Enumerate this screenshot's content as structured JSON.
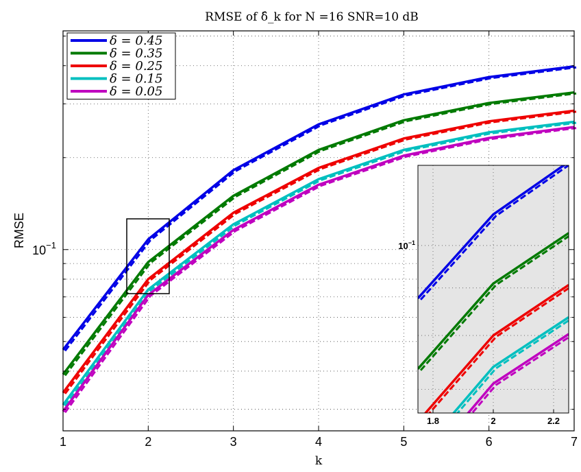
{
  "chart_data": {
    "type": "line",
    "title": "RMSE of δ̂_k for N =16 SNR=10 dB",
    "xlabel": "k",
    "ylabel": "RMSE",
    "yscale": "log",
    "xlim": [
      1,
      7
    ],
    "ylim": [
      0.0255,
      0.52
    ],
    "x": [
      1,
      2,
      3,
      4,
      5,
      6,
      7
    ],
    "xticks": [
      "1",
      "2",
      "3",
      "4",
      "5",
      "6",
      "7"
    ],
    "ytick_label": "10",
    "ytick_exp": "−1",
    "grid": true,
    "legend_position": "top-left",
    "series": [
      {
        "name": "δ = 0.45",
        "color": "#0000e6",
        "values": [
          0.047,
          0.108,
          0.182,
          0.257,
          0.322,
          0.367,
          0.398
        ]
      },
      {
        "name": "δ = 0.35",
        "color": "#007a00",
        "values": [
          0.039,
          0.091,
          0.15,
          0.212,
          0.265,
          0.302,
          0.327
        ]
      },
      {
        "name": "δ = 0.25",
        "color": "#ee0000",
        "values": [
          0.034,
          0.08,
          0.132,
          0.185,
          0.231,
          0.263,
          0.285
        ]
      },
      {
        "name": "δ = 0.15",
        "color": "#00bfbf",
        "values": [
          0.031,
          0.074,
          0.121,
          0.17,
          0.212,
          0.242,
          0.262
        ]
      },
      {
        "name": "δ = 0.05",
        "color": "#bf00bf",
        "values": [
          0.0295,
          0.071,
          0.116,
          0.163,
          0.203,
          0.232,
          0.252
        ]
      }
    ],
    "inset": {
      "xlim": [
        1.75,
        2.25
      ],
      "ylim": [
        0.066,
        0.122
      ],
      "xticks": [
        "1.8",
        "2",
        "2.2"
      ],
      "ytick_label": "10",
      "ytick_exp": "−1",
      "background": "#e5e5e5"
    }
  }
}
